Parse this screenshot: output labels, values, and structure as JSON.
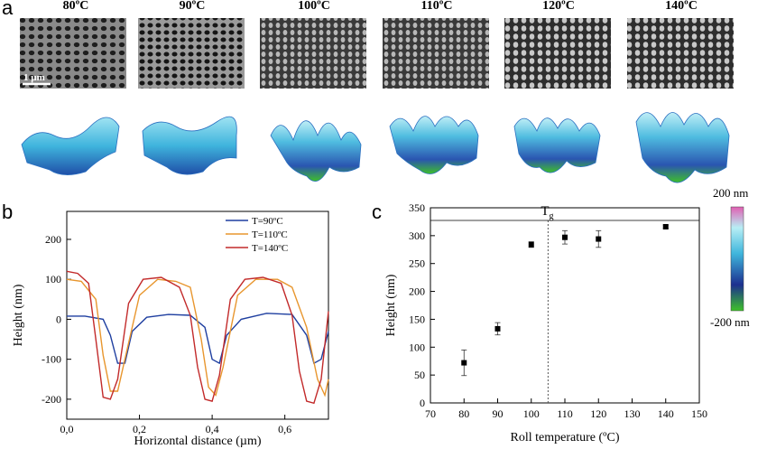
{
  "panel_a": {
    "letter": "a",
    "temperatures": [
      "80ºC",
      "90ºC",
      "100ºC",
      "110ºC",
      "120ºC",
      "140ºC"
    ],
    "scale_bar": "1 µm"
  },
  "panel_b": {
    "letter": "b"
  },
  "panel_c": {
    "letter": "c",
    "tg_label": "T",
    "tg_sub": "g"
  },
  "colorbar": {
    "top": "200 nm",
    "bottom": "-200 nm"
  },
  "chart_data": [
    {
      "type": "line",
      "xlabel": "Horizontal distance (µm)",
      "ylabel": "Height (nm)",
      "xlim": [
        0,
        0.72
      ],
      "ylim": [
        -250,
        270
      ],
      "x_ticks": [
        "0,0",
        "0,2",
        "0,4",
        "0,6"
      ],
      "x_tick_values": [
        0,
        0.2,
        0.4,
        0.6
      ],
      "y_ticks": [
        -200,
        -100,
        0,
        100,
        200
      ],
      "legend_position": "top-right",
      "series": [
        {
          "name": "T=90ºC",
          "color": "#1f3fa0",
          "x": [
            0,
            0.05,
            0.1,
            0.12,
            0.14,
            0.16,
            0.18,
            0.22,
            0.28,
            0.34,
            0.38,
            0.4,
            0.42,
            0.44,
            0.48,
            0.55,
            0.62,
            0.66,
            0.68,
            0.7,
            0.72
          ],
          "y": [
            8,
            8,
            0,
            -40,
            -110,
            -110,
            -30,
            5,
            12,
            10,
            -20,
            -100,
            -110,
            -40,
            0,
            15,
            12,
            -40,
            -110,
            -100,
            -30
          ]
        },
        {
          "name": "T=110ºC",
          "color": "#e8962e",
          "x": [
            0,
            0.04,
            0.08,
            0.1,
            0.12,
            0.14,
            0.16,
            0.2,
            0.25,
            0.3,
            0.34,
            0.37,
            0.39,
            0.41,
            0.43,
            0.47,
            0.52,
            0.58,
            0.62,
            0.66,
            0.69,
            0.71,
            0.72
          ],
          "y": [
            100,
            95,
            50,
            -90,
            -180,
            -180,
            -100,
            60,
            100,
            95,
            80,
            -50,
            -170,
            -190,
            -120,
            60,
            100,
            100,
            80,
            -20,
            -150,
            -190,
            -150
          ]
        },
        {
          "name": "T=140ºC",
          "color": "#c22a2a",
          "x": [
            0,
            0.03,
            0.06,
            0.08,
            0.1,
            0.12,
            0.14,
            0.17,
            0.21,
            0.26,
            0.31,
            0.34,
            0.36,
            0.38,
            0.4,
            0.42,
            0.45,
            0.49,
            0.54,
            0.59,
            0.62,
            0.64,
            0.66,
            0.68,
            0.7,
            0.72
          ],
          "y": [
            120,
            115,
            90,
            -50,
            -195,
            -200,
            -150,
            40,
            100,
            105,
            80,
            10,
            -120,
            -200,
            -205,
            -140,
            50,
            100,
            105,
            90,
            10,
            -130,
            -205,
            -210,
            -150,
            20
          ]
        }
      ]
    },
    {
      "type": "scatter",
      "xlabel": "Roll temperature (ºC)",
      "ylabel": "Height (nm)",
      "xlim": [
        70,
        150
      ],
      "ylim": [
        0,
        350
      ],
      "x_ticks": [
        70,
        80,
        90,
        100,
        110,
        120,
        130,
        140,
        150
      ],
      "y_ticks": [
        0,
        50,
        100,
        150,
        200,
        250,
        300,
        350
      ],
      "tg_line_x": 105,
      "points": [
        {
          "x": 80,
          "y": 72,
          "err": 23
        },
        {
          "x": 90,
          "y": 133,
          "err": 11
        },
        {
          "x": 100,
          "y": 284,
          "err": 5
        },
        {
          "x": 110,
          "y": 297,
          "err": 12
        },
        {
          "x": 120,
          "y": 294,
          "err": 15
        },
        {
          "x": 140,
          "y": 316,
          "err": 3
        }
      ]
    }
  ]
}
